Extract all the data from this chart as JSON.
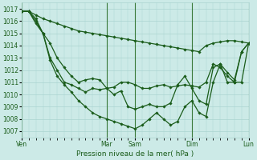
{
  "background_color": "#cceae7",
  "grid_color": "#aad4d0",
  "line_color": "#1a5c1a",
  "marker_color": "#1a5c1a",
  "xlabel": "Pression niveau de la mer( hPa )",
  "ylim": [
    1006.5,
    1017.5
  ],
  "yticks": [
    1007,
    1008,
    1009,
    1010,
    1011,
    1012,
    1013,
    1014,
    1015,
    1016,
    1017
  ],
  "xtick_labels": [
    "Ven",
    "Mar",
    "Sam",
    "Dim",
    "Lun"
  ],
  "xtick_positions": [
    0,
    72,
    96,
    144,
    192
  ],
  "total_hours": 192,
  "vlines": [
    0,
    72,
    96,
    144,
    192
  ],
  "series": [
    {
      "x": [
        0,
        6,
        12,
        18,
        24,
        30,
        36,
        42,
        48,
        54,
        60,
        66,
        72,
        78,
        84,
        90,
        96,
        102,
        108,
        114,
        120,
        126,
        132,
        138,
        144,
        150,
        156,
        162,
        168,
        174,
        180,
        186,
        192
      ],
      "y": [
        1016.8,
        1016.8,
        1016.5,
        1016.2,
        1016.0,
        1015.8,
        1015.6,
        1015.4,
        1015.2,
        1015.1,
        1015.0,
        1014.9,
        1014.8,
        1014.7,
        1014.6,
        1014.5,
        1014.4,
        1014.3,
        1014.2,
        1014.1,
        1014.0,
        1013.9,
        1013.8,
        1013.7,
        1013.6,
        1013.5,
        1014.0,
        1014.2,
        1014.3,
        1014.4,
        1014.4,
        1014.3,
        1014.2
      ]
    },
    {
      "x": [
        0,
        6,
        12,
        18,
        24,
        30,
        36,
        42,
        48,
        54,
        60,
        66,
        72,
        78,
        84,
        90,
        96,
        102,
        108,
        114,
        120,
        126,
        132,
        138,
        144,
        150,
        156,
        162,
        168,
        174,
        180,
        186,
        192
      ],
      "y": [
        1016.8,
        1016.8,
        1016.2,
        1015.0,
        1014.2,
        1013.0,
        1012.2,
        1011.5,
        1011.0,
        1011.2,
        1011.3,
        1011.2,
        1010.5,
        1010.6,
        1011.0,
        1011.0,
        1010.8,
        1010.5,
        1010.5,
        1010.7,
        1010.8,
        1010.6,
        1010.7,
        1010.8,
        1010.7,
        1010.6,
        1011.0,
        1012.5,
        1012.2,
        1011.5,
        1011.0,
        1011.0,
        1014.2
      ]
    },
    {
      "x": [
        0,
        6,
        12,
        18,
        24,
        30,
        36,
        42,
        48,
        54,
        60,
        66,
        72,
        78,
        84,
        90,
        96,
        102,
        108,
        114,
        120,
        126,
        132,
        138,
        144,
        150,
        156,
        162,
        168,
        174,
        180,
        186,
        192
      ],
      "y": [
        1016.8,
        1016.8,
        1016.0,
        1015.0,
        1013.0,
        1012.0,
        1011.0,
        1010.8,
        1010.5,
        1010.2,
        1010.5,
        1010.4,
        1010.5,
        1010.0,
        1010.3,
        1009.0,
        1008.8,
        1009.0,
        1009.2,
        1009.0,
        1009.0,
        1009.3,
        1010.8,
        1011.5,
        1010.5,
        1009.5,
        1009.2,
        1012.2,
        1012.5,
        1011.8,
        1011.2,
        1013.5,
        1014.2
      ]
    },
    {
      "x": [
        0,
        6,
        12,
        18,
        24,
        30,
        36,
        42,
        48,
        54,
        60,
        66,
        72,
        78,
        84,
        90,
        96,
        102,
        108,
        114,
        120,
        126,
        132,
        138,
        144,
        150,
        156,
        162,
        168,
        174,
        180,
        186,
        192
      ],
      "y": [
        1016.8,
        1016.8,
        1015.8,
        1015.0,
        1012.8,
        1011.5,
        1010.8,
        1010.2,
        1009.5,
        1009.0,
        1008.5,
        1008.2,
        1008.0,
        1007.8,
        1007.6,
        1007.4,
        1007.2,
        1007.5,
        1008.0,
        1008.5,
        1008.0,
        1007.5,
        1007.8,
        1009.0,
        1009.5,
        1008.5,
        1008.2,
        1011.0,
        1012.5,
        1011.0,
        1011.0,
        1013.5,
        1014.2
      ]
    }
  ]
}
